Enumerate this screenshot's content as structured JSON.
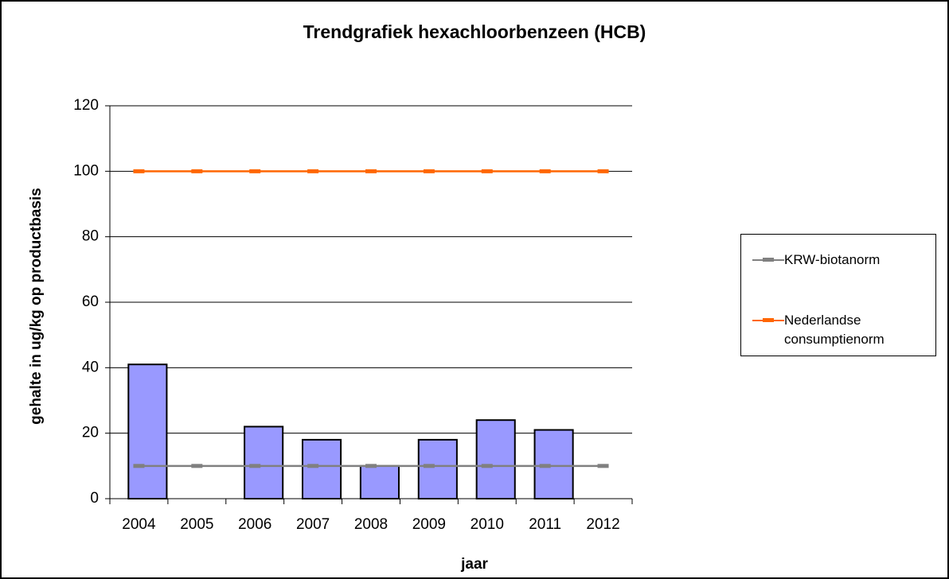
{
  "chart_data": {
    "type": "bar",
    "title": "Trendgrafiek hexachloorbenzeen (HCB)",
    "x_label": "jaar",
    "y_label": "gehalte in ug/kg op productbasis",
    "categories": [
      "2004",
      "2005",
      "2006",
      "2007",
      "2008",
      "2009",
      "2010",
      "2011",
      "2012"
    ],
    "series": [
      {
        "type": "bar",
        "color": "#9999ff",
        "values": [
          41,
          null,
          22,
          18,
          10,
          18,
          24,
          21,
          null
        ]
      },
      {
        "type": "line",
        "name": "KRW-biotanorm",
        "color": "#808080",
        "values": [
          10,
          10,
          10,
          10,
          10,
          10,
          10,
          10,
          10
        ]
      },
      {
        "type": "line",
        "name": "Nederlandse consumptienorm",
        "color": "#ff6600",
        "values": [
          100,
          100,
          100,
          100,
          100,
          100,
          100,
          100,
          100
        ]
      }
    ],
    "ylim": [
      0,
      120
    ],
    "yticks": [
      0,
      20,
      40,
      60,
      80,
      100,
      120
    ],
    "grid": true,
    "legend": "right"
  }
}
